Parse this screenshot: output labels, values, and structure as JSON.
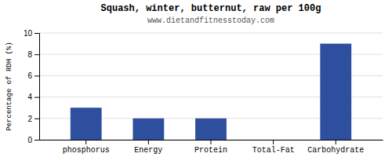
{
  "chart_data": {
    "type": "bar",
    "title": "Squash, winter, butternut, raw per 100g",
    "subtitle": "www.dietandfitnesstoday.com",
    "ylabel": "Percentage of RDH (%)",
    "categories": [
      "phosphorus",
      "Energy",
      "Protein",
      "Total-Fat",
      "Carbohydrate"
    ],
    "values": [
      3,
      2,
      2,
      0,
      9
    ],
    "color": "#2e4f9e",
    "ylim": [
      0,
      10
    ],
    "yticks": [
      0,
      2,
      4,
      6,
      8,
      10
    ],
    "grid": true
  }
}
